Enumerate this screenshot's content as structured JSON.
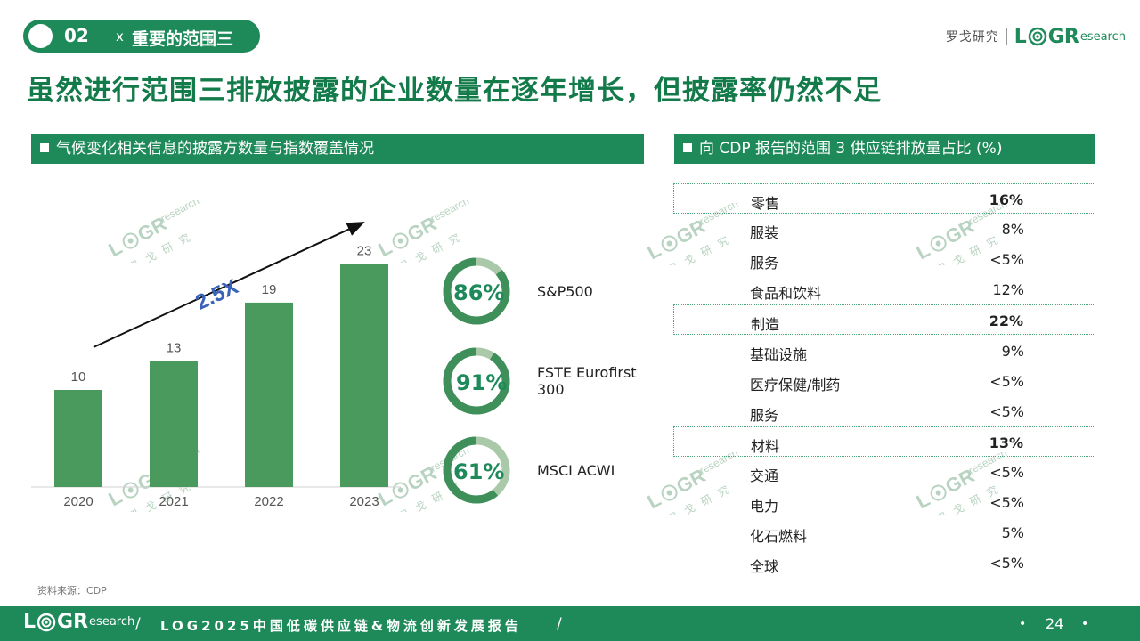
{
  "section": {
    "number": "02",
    "sep": "x",
    "title": "重要的范围三"
  },
  "brand": {
    "cn_name": "罗戈研究",
    "logo_L": "L",
    "logo_G": "G",
    "logo_R": "R",
    "logo_research": "esearch"
  },
  "headline": "虽然进行范围三排放披露的企业数量在逐年增长，但披露率仍然不足",
  "left_panel": {
    "title": "气候变化相关信息的披露方数量与指数覆盖情况"
  },
  "right_panel": {
    "title": "向 CDP 报告的范围 3 供应链排放量占比 (%)"
  },
  "chart_data": {
    "type": "bar",
    "categories": [
      "2020",
      "2021",
      "2022",
      "2023"
    ],
    "values": [
      10,
      13,
      19,
      23
    ],
    "annotation": "2.5X",
    "color": "#4a9a5e"
  },
  "gauges": [
    {
      "pct": "86%",
      "value": 86,
      "label": "S&P500"
    },
    {
      "pct": "91%",
      "value": 91,
      "label": "FSTE Eurofirst 300"
    },
    {
      "pct": "61%",
      "value": 61,
      "label": "MSCI ACWI"
    }
  ],
  "gauge_colors": {
    "fill": "#3f8f5a",
    "track": "#a9c9a8"
  },
  "table": [
    {
      "name": "零售",
      "value": "16%",
      "highlight": true
    },
    {
      "name": "服装",
      "value": "8%",
      "highlight": false
    },
    {
      "name": "服务",
      "value": "<5%",
      "highlight": false
    },
    {
      "name": "食品和饮料",
      "value": "12%",
      "highlight": false
    },
    {
      "name": "制造",
      "value": "22%",
      "highlight": true
    },
    {
      "name": "基础设施",
      "value": "9%",
      "highlight": false
    },
    {
      "name": "医疗保健/制药",
      "value": "<5%",
      "highlight": false
    },
    {
      "name": "服务",
      "value": "<5%",
      "highlight": false
    },
    {
      "name": "材料",
      "value": "13%",
      "highlight": true
    },
    {
      "name": "交通",
      "value": "<5%",
      "highlight": false
    },
    {
      "name": "电力",
      "value": "<5%",
      "highlight": false
    },
    {
      "name": "化石燃料",
      "value": "5%",
      "highlight": false
    },
    {
      "name": "全球",
      "value": "<5%",
      "highlight": false
    }
  ],
  "source": "资料来源：CDP",
  "footer": {
    "slash": "/",
    "report": "LOG2025中国低碳供应链&物流创新发展报告",
    "page": "24",
    "dot": "•"
  },
  "watermark": {
    "text": "research",
    "cn": "罗 戈 研 究"
  },
  "colors": {
    "primary": "#1e8a5a",
    "headline": "#137a4a",
    "arrow_text": "#3a62b8"
  }
}
